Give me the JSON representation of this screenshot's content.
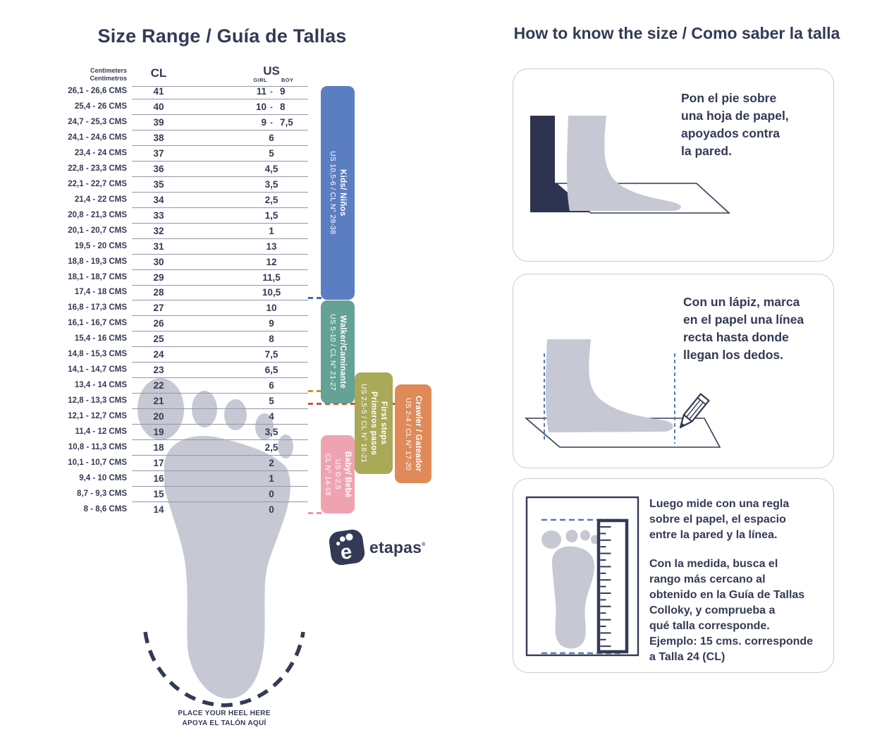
{
  "colors": {
    "ink": "#333a56",
    "foot": "#c6c9d4",
    "line": "#9298a8",
    "box_border": "#c7cbd6",
    "dash_blue_line": "#5b79b2",
    "dash_kids": "#4a66ae",
    "dash_firststeps": "#b39b3e",
    "dash_crawler": "#c4563e",
    "dash_baby": "#ed96a5"
  },
  "left": {
    "title": "Size Range / Guía de Tallas",
    "table": {
      "cm_header": "Centimeters\nCentimetros",
      "cl_header": "CL",
      "us_header": "US",
      "girl_label": "GIRL",
      "boy_label": "BOY",
      "girl_boy_separator": "-",
      "rows": [
        {
          "cms": "26,1 - 26,6 CMS",
          "cl": "41",
          "girl": "11",
          "boy": "9"
        },
        {
          "cms": "25,4 - 26 CMS",
          "cl": "40",
          "girl": "10",
          "boy": "8"
        },
        {
          "cms": "24,7 - 25,3 CMS",
          "cl": "39",
          "girl": "9",
          "boy": "7,5"
        },
        {
          "cms": "24,1 - 24,6 CMS",
          "cl": "38",
          "us": "6"
        },
        {
          "cms": "23,4 - 24 CMS",
          "cl": "37",
          "us": "5"
        },
        {
          "cms": "22,8 - 23,3 CMS",
          "cl": "36",
          "us": "4,5"
        },
        {
          "cms": "22,1 - 22,7 CMS",
          "cl": "35",
          "us": "3,5"
        },
        {
          "cms": "21,4 - 22 CMS",
          "cl": "34",
          "us": "2,5"
        },
        {
          "cms": "20,8 - 21,3 CMS",
          "cl": "33",
          "us": "1,5"
        },
        {
          "cms": "20,1 - 20,7 CMS",
          "cl": "32",
          "us": "1"
        },
        {
          "cms": "19,5 - 20 CMS",
          "cl": "31",
          "us": "13"
        },
        {
          "cms": "18,8 - 19,3 CMS",
          "cl": "30",
          "us": "12"
        },
        {
          "cms": "18,1 - 18,7 CMS",
          "cl": "29",
          "us": "11,5"
        },
        {
          "cms": "17,4 - 18 CMS",
          "cl": "28",
          "us": "10,5"
        },
        {
          "cms": "16,8 - 17,3 CMS",
          "cl": "27",
          "us": "10"
        },
        {
          "cms": "16,1 - 16,7 CMS",
          "cl": "26",
          "us": "9"
        },
        {
          "cms": "15,4 - 16 CMS",
          "cl": "25",
          "us": "8"
        },
        {
          "cms": "14,8 - 15,3 CMS",
          "cl": "24",
          "us": "7,5"
        },
        {
          "cms": "14,1 - 14,7 CMS",
          "cl": "23",
          "us": "6,5"
        },
        {
          "cms": "13,4 - 14 CMS",
          "cl": "22",
          "us": "6"
        },
        {
          "cms": "12,8 - 13,3 CMS",
          "cl": "21",
          "us": "5"
        },
        {
          "cms": "12,1 - 12,7 CMS",
          "cl": "20",
          "us": "4"
        },
        {
          "cms": "11,4 - 12 CMS",
          "cl": "19",
          "us": "3,5"
        },
        {
          "cms": "10,8 - 11,3 CMS",
          "cl": "18",
          "us": "2,5"
        },
        {
          "cms": "10,1 - 10,7 CMS",
          "cl": "17",
          "us": "2"
        },
        {
          "cms": "9,4 - 10 CMS",
          "cl": "16",
          "us": "1"
        },
        {
          "cms": "8,7 - 9,3 CMS",
          "cl": "15",
          "us": "0"
        },
        {
          "cms": "8 - 8,6 CMS",
          "cl": "14",
          "us": "0"
        }
      ]
    },
    "stages": [
      {
        "id": "kids",
        "name": "Kids/ Niños",
        "range": "US 10,5-6 / CL N° 28-38",
        "color": "#5b7ec2"
      },
      {
        "id": "walker",
        "name": "Walker/Caminante",
        "range": "US 5-10 / CL N° 21-27",
        "color": "#63a294"
      },
      {
        "id": "firststeps",
        "name": "First steps",
        "name2": "Primeros pasos",
        "range": "US 2,5-5 / CL N° 18-21",
        "color": "#a9a958"
      },
      {
        "id": "crawler",
        "name": "Crawler / Gateador",
        "range": "US 2-4 / CL N° 17-20",
        "color": "#df8a58"
      },
      {
        "id": "baby",
        "name": "Baby/ Bebé",
        "range": "US 0-2,5",
        "range2": "CL N° 14-18",
        "color": "#efa3b1"
      }
    ],
    "heel_note_line1": "PLACE YOUR HEEL HERE",
    "heel_note_line2": "APOYA EL TALÓN AQUÍ",
    "brand": "etapas",
    "brand_mark": "®",
    "logo_letter": "e"
  },
  "right": {
    "title": "How to know the size / Como saber la talla",
    "steps": [
      {
        "text": "Pon el pie sobre\nuna hoja de papel,\napoyados contra\nla pared."
      },
      {
        "text": "Con un lápiz, marca\nen el papel una línea\nrecta hasta donde\nllegan los dedos."
      },
      {
        "text1": "Luego mide con una regla\nsobre el papel, el espacio\nentre la pared y la línea.",
        "text2": "Con la medida, busca el\nrango más cercano al\nobtenido en la Guía de Tallas\nColloky, y comprueba a\nqué talla corresponde.\nEjemplo:  15 cms. corresponde\na Talla 24 (CL)"
      }
    ]
  }
}
